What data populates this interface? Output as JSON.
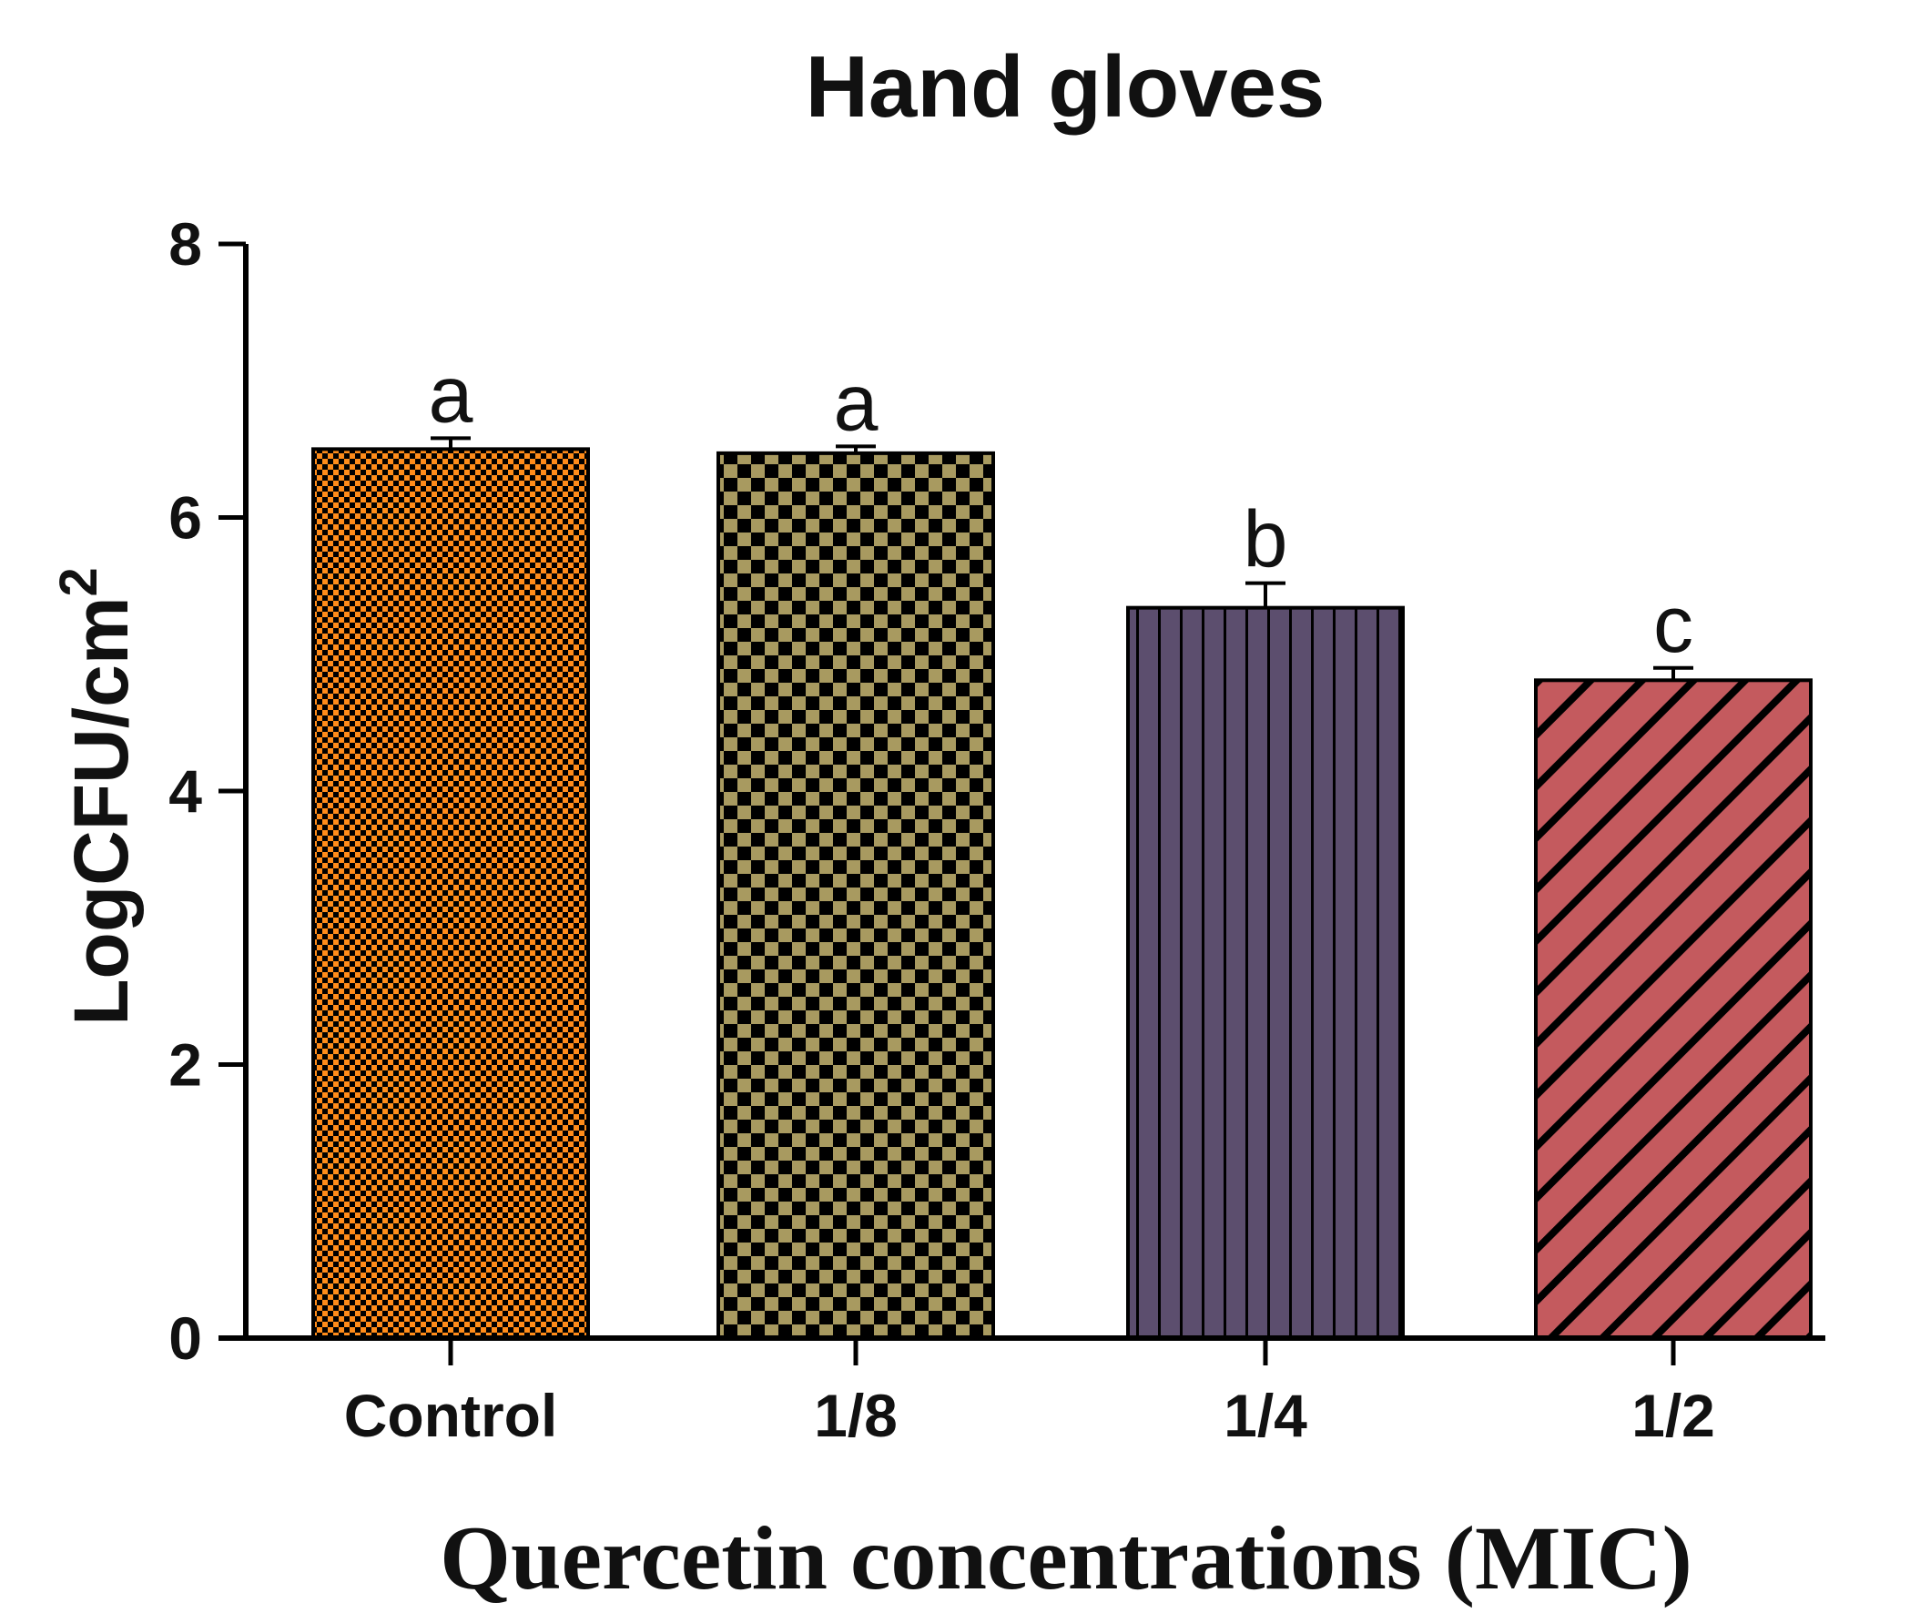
{
  "chart_data": {
    "type": "bar",
    "title": "Hand gloves",
    "xlabel": "Quercetin concentrations (MIC)",
    "ylabel_base": "LogCFU/cm",
    "ylabel_superscript": "2",
    "categories": [
      "Control",
      "1/8",
      "1/4",
      "1/2"
    ],
    "values": [
      6.5,
      6.47,
      5.34,
      4.81
    ],
    "errors": [
      0.08,
      0.05,
      0.18,
      0.09
    ],
    "significance_labels": [
      "a",
      "a",
      "b",
      "c"
    ],
    "ylim": [
      0,
      8
    ],
    "yticks": [
      0,
      2,
      4,
      6,
      8
    ],
    "grid": false,
    "bar_colors": [
      "#ff8c1a",
      "#a89a60",
      "#5c4e6e",
      "#c45a5e"
    ],
    "bar_patterns": [
      "fine-checker",
      "checker",
      "vertical-stripes",
      "diagonal-stripes"
    ]
  }
}
